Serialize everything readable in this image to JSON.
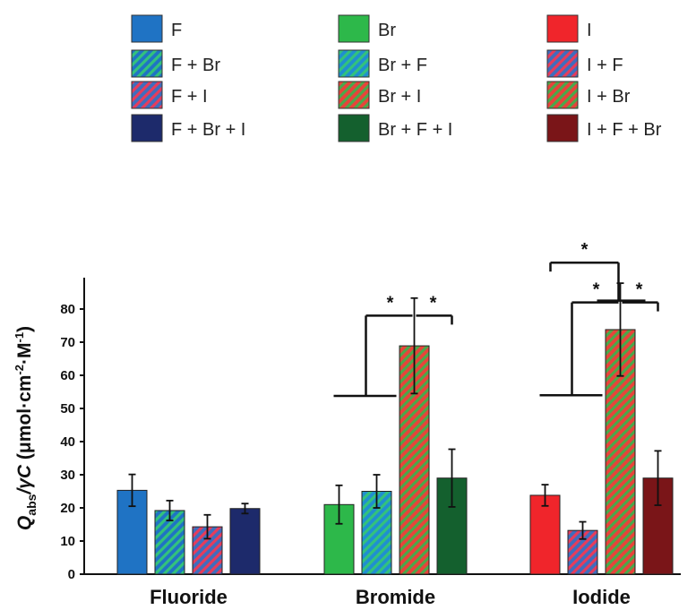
{
  "chart_data": {
    "type": "bar",
    "categories": [
      "Fluoride",
      "Bromide",
      "Iodide"
    ],
    "ylabel": {
      "main": "Q",
      "sub": "abs",
      "mid": "/γC",
      "units": " (μmol·cm",
      "sup1": "-2",
      "dot": "·M",
      "sup2": "-1",
      "close": ")"
    },
    "ylim": [
      0,
      80
    ],
    "yticks": [
      0,
      10,
      20,
      30,
      40,
      50,
      60,
      70,
      80
    ],
    "legend_placement": "top",
    "groups": [
      {
        "category": "Fluoride",
        "series": [
          {
            "name": "F",
            "value": 25.3,
            "error": 4.8,
            "color": "#1f73c4",
            "pattern": "solid"
          },
          {
            "name": "F + Br",
            "value": 19.2,
            "error": 3.0,
            "color": "#1f73c4",
            "color2": "#33c27c",
            "pattern": "hatch"
          },
          {
            "name": "F + I",
            "value": 14.3,
            "error": 3.6,
            "color": "#3f6dbd",
            "color2": "#e63c5c",
            "pattern": "hatch"
          },
          {
            "name": "F + Br + I",
            "value": 19.8,
            "error": 1.5,
            "color": "#1d2a6b",
            "pattern": "solid"
          }
        ]
      },
      {
        "category": "Bromide",
        "series": [
          {
            "name": "Br",
            "value": 21.0,
            "error": 5.8,
            "color": "#2db84a",
            "pattern": "solid"
          },
          {
            "name": "Br + F",
            "value": 25.0,
            "error": 5.0,
            "color": "#1f8fd0",
            "color2": "#33c27c",
            "pattern": "hatch"
          },
          {
            "name": "Br + I",
            "value": 68.9,
            "error": 14.4,
            "color": "#e8433a",
            "color2": "#4aa84a",
            "pattern": "hatch"
          },
          {
            "name": "Br + F + I",
            "value": 29.0,
            "error": 8.7,
            "color": "#14602e",
            "pattern": "solid"
          }
        ]
      },
      {
        "category": "Iodide",
        "series": [
          {
            "name": "I",
            "value": 23.8,
            "error": 3.2,
            "color": "#f0252b",
            "pattern": "solid"
          },
          {
            "name": "I + F",
            "value": 13.2,
            "error": 2.6,
            "color": "#3f6dbd",
            "color2": "#e63c5c",
            "pattern": "hatch"
          },
          {
            "name": "I + Br",
            "value": 73.8,
            "error": 14.0,
            "color": "#e8433a",
            "color2": "#4aa84a",
            "pattern": "hatch"
          },
          {
            "name": "I + F + Br",
            "value": 29.0,
            "error": 8.2,
            "color": "#7a1518",
            "pattern": "solid"
          }
        ]
      }
    ],
    "legend": [
      [
        "F",
        "F + Br",
        "F + I",
        "F + Br + I"
      ],
      [
        "Br",
        "Br + F",
        "Br + I",
        "Br + F + I"
      ],
      [
        "I",
        "I + F",
        "I + Br",
        "I + F + Br"
      ]
    ],
    "significance": [
      {
        "group": "Bromide",
        "label": "*",
        "from_bar": 1,
        "to_bar": 2,
        "level": 78
      },
      {
        "group": "Bromide",
        "label": "*",
        "from_bar": 2,
        "to_bar": 3,
        "level": 78
      },
      {
        "group": "Iodide",
        "label": "*",
        "from_bar": 1,
        "to_bar": 2,
        "level": 82
      },
      {
        "group": "Iodide",
        "label": "*",
        "from_bar": 2,
        "to_bar": 3,
        "level": 82
      },
      {
        "group": "Iodide",
        "label": "*",
        "from_bar": 0,
        "to_bar": 2,
        "level": 94
      }
    ]
  }
}
